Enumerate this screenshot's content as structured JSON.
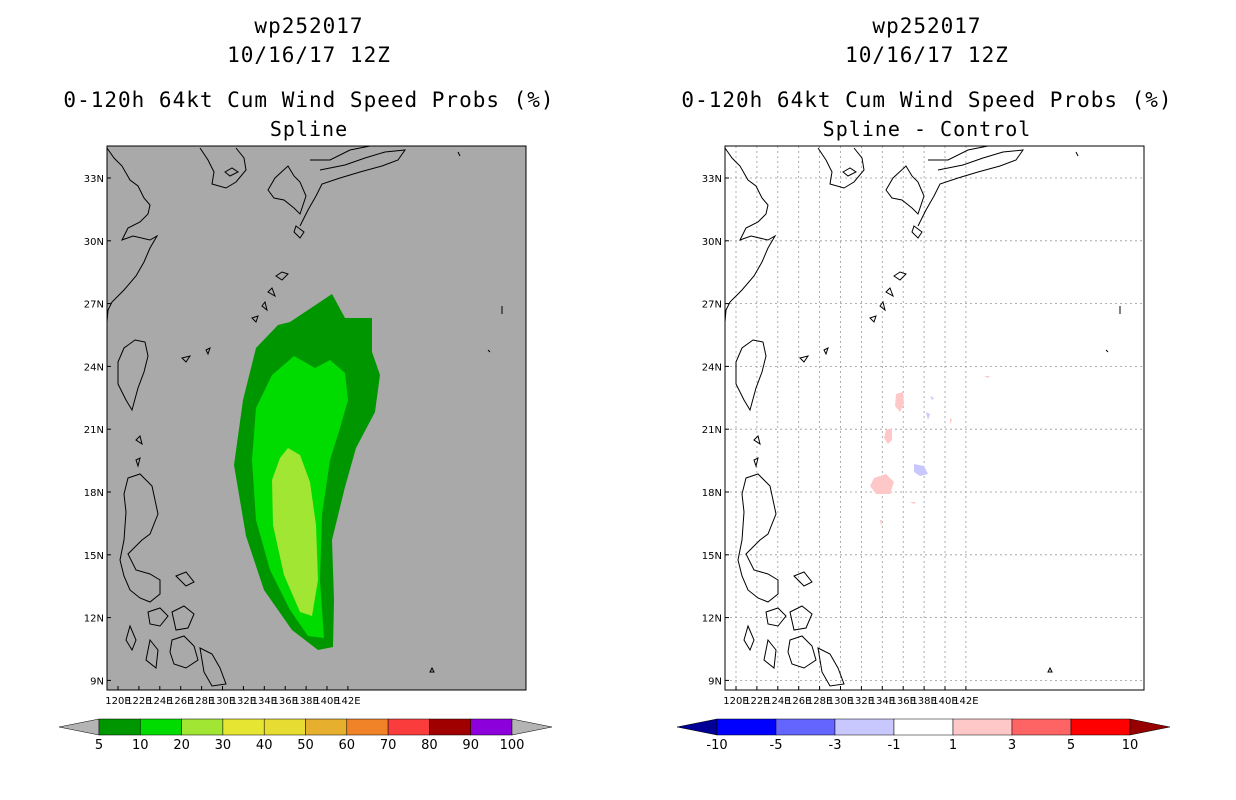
{
  "left_panel": {
    "storm_id": "wp252017",
    "datetime": "10/16/17 12Z",
    "title": "0-120h 64kt Cum Wind Speed Probs (%)",
    "subtitle": "Spline",
    "map_background": "#a9a9a9",
    "lon_labels": [
      "120E",
      "122E",
      "124E",
      "126E",
      "128E",
      "130E",
      "132E",
      "134E",
      "136E",
      "138E",
      "140E",
      "142E"
    ],
    "lat_labels": [
      "33N",
      "30N",
      "27N",
      "24N",
      "21N",
      "18N",
      "15N",
      "12N",
      "9N"
    ],
    "colorbar": {
      "labels": [
        "5",
        "10",
        "20",
        "30",
        "40",
        "50",
        "60",
        "70",
        "80",
        "90",
        "100"
      ],
      "colors": [
        "#b4b4b4",
        "#009600",
        "#00dc00",
        "#a0e632",
        "#e6e632",
        "#e6dc32",
        "#e6af2d",
        "#f08228",
        "#fa3c3c",
        "#a00000",
        "#8c00dc",
        "#b4b4b4"
      ]
    },
    "prob_levels": [
      {
        "label": "5-10%",
        "color": "#009600"
      },
      {
        "label": "10-20%",
        "color": "#00dc00"
      },
      {
        "label": "20-30%",
        "color": "#a0e632"
      }
    ]
  },
  "right_panel": {
    "storm_id": "wp252017",
    "datetime": "10/16/17 12Z",
    "title": "0-120h 64kt Cum Wind Speed Probs (%)",
    "subtitle": "Spline - Control",
    "map_background": "#ffffff",
    "lon_labels": [
      "120E",
      "122E",
      "124E",
      "126E",
      "128E",
      "130E",
      "132E",
      "134E",
      "136E",
      "138E",
      "140E",
      "142E"
    ],
    "lat_labels": [
      "33N",
      "30N",
      "27N",
      "24N",
      "21N",
      "18N",
      "15N",
      "12N",
      "9N"
    ],
    "colorbar": {
      "labels": [
        "-10",
        "-5",
        "-3",
        "-1",
        "1",
        "3",
        "5",
        "10"
      ],
      "colors": [
        "#000096",
        "#0000ff",
        "#6464ff",
        "#c8c8ff",
        "#ffffff",
        "#ffc8c8",
        "#ff6464",
        "#ff0000",
        "#960000"
      ]
    },
    "diff_colors": {
      "positive": "#ffc8c8",
      "negative": "#c8c8ff"
    }
  }
}
